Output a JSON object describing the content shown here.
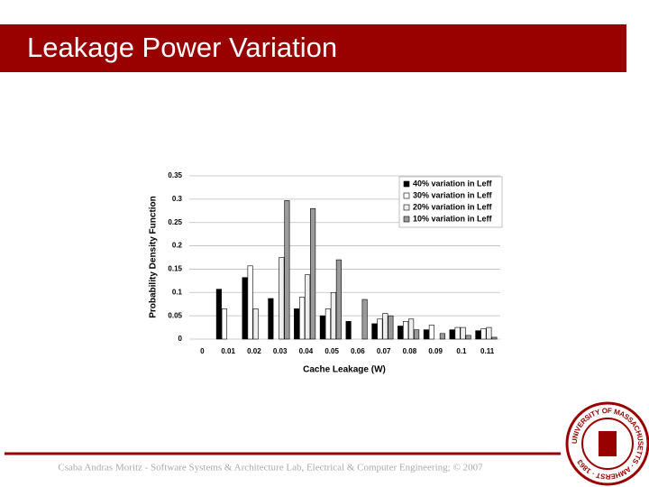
{
  "header": {
    "title": "Leakage Power Variation"
  },
  "chart_data": {
    "type": "bar",
    "xlabel": "Cache Leakage (W)",
    "ylabel": "Probability Density Function",
    "categories": [
      "0",
      "0.01",
      "0.02",
      "0.03",
      "0.04",
      "0.05",
      "0.06",
      "0.07",
      "0.08",
      "0.09",
      "0.1",
      "0.11"
    ],
    "series": [
      {
        "name": "40% variation in Leff",
        "color": "#000000",
        "values": [
          0,
          0.107,
          0.132,
          0.087,
          0.065,
          0.05,
          0.038,
          0.033,
          0.028,
          0.02,
          0.02,
          0.018
        ]
      },
      {
        "name": "30% variation in Leff",
        "color": "#ffffff",
        "values": [
          0,
          0.065,
          0.157,
          0,
          0.09,
          0.065,
          0,
          0.043,
          0.038,
          0.03,
          0.025,
          0.022
        ]
      },
      {
        "name": "20% variation in Leff",
        "color": "#eeeeee",
        "values": [
          0,
          0,
          0.065,
          0.175,
          0.138,
          0.1,
          0,
          0.055,
          0.043,
          0,
          0.025,
          0.025
        ]
      },
      {
        "name": "10% variation in Leff",
        "color": "#9a9a9a",
        "values": [
          0,
          0,
          0,
          0.297,
          0.28,
          0.17,
          0.085,
          0.05,
          0.02,
          0.012,
          0.008,
          0.004
        ]
      }
    ],
    "ylim": [
      0,
      0.35
    ],
    "yticks": [
      0,
      0.05,
      0.1,
      0.15,
      0.2,
      0.25,
      0.3,
      0.35
    ],
    "grid": true,
    "legend": "top-right"
  },
  "footer": {
    "text": "Csaba Andras Moritz - Software Systems & Architecture Lab, Electrical & Computer Engineering; © 2007"
  },
  "seal": {
    "text": "UNIVERSITY OF MASSACHUSETTS · AMHERST · 1863"
  }
}
